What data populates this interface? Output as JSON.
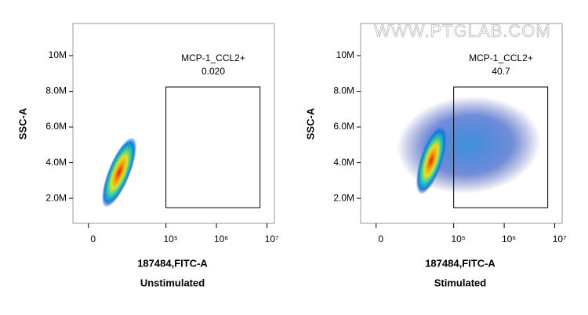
{
  "watermark": "WWW.PTGLAB.COM",
  "chart_data": [
    {
      "type": "density",
      "title": "Unstimulated",
      "x_label": "187484,FITC-A",
      "y_label": "SSC-A",
      "xscale": "biexponential",
      "xlim": [
        -20000,
        14000000
      ],
      "xticks": [
        0,
        {
          "value": 100000,
          "label": "10⁵"
        },
        {
          "value": 1000000,
          "label": "10⁶"
        },
        {
          "value": 10000000,
          "label": "10⁷"
        }
      ],
      "ylim": [
        600000,
        11800000
      ],
      "yticks": [
        {
          "value": 2000000,
          "label": "2.0M"
        },
        {
          "value": 4000000,
          "label": "4.0M"
        },
        {
          "value": 6000000,
          "label": "6.0M"
        },
        {
          "value": 8000000,
          "label": "8.0M"
        },
        {
          "value": 10000000,
          "label": "10M"
        }
      ],
      "gate": {
        "name": "MCP-1_CCL2+",
        "value": 0.02,
        "value_label": "0.020"
      }
    },
    {
      "type": "density",
      "title": "Stimulated",
      "x_label": "187484,FITC-A",
      "y_label": "SSC-A",
      "xscale": "biexponential",
      "xlim": [
        -20000,
        14000000
      ],
      "xticks": [
        0,
        {
          "value": 100000,
          "label": "10⁵"
        },
        {
          "value": 1000000,
          "label": "10⁶"
        },
        {
          "value": 10000000,
          "label": "10⁷"
        }
      ],
      "ylim": [
        600000,
        11800000
      ],
      "yticks": [
        {
          "value": 2000000,
          "label": "2.0M"
        },
        {
          "value": 4000000,
          "label": "4.0M"
        },
        {
          "value": 6000000,
          "label": "6.0M"
        },
        {
          "value": 8000000,
          "label": "8.0M"
        },
        {
          "value": 10000000,
          "label": "10M"
        }
      ],
      "gate": {
        "name": "MCP-1_CCL2+",
        "value": 40.7
      }
    }
  ]
}
